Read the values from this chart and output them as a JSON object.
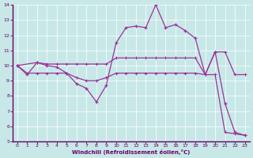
{
  "title": "",
  "xlabel": "Windchill (Refroidissement éolien,°C)",
  "xlim": [
    -0.5,
    23.5
  ],
  "ylim": [
    5,
    14
  ],
  "yticks": [
    5,
    6,
    7,
    8,
    9,
    10,
    11,
    12,
    13,
    14
  ],
  "xticks": [
    0,
    1,
    2,
    3,
    4,
    5,
    6,
    7,
    8,
    9,
    10,
    11,
    12,
    13,
    14,
    15,
    16,
    17,
    18,
    19,
    20,
    21,
    22,
    23
  ],
  "bg_color": "#c8e8e8",
  "line_color": "#993399",
  "axis_color": "#660066",
  "line1_x": [
    0,
    1,
    2,
    3,
    4,
    5,
    6,
    7,
    8,
    9,
    10,
    11,
    12,
    13,
    14,
    15,
    16,
    17,
    18,
    19,
    20,
    21,
    22,
    23
  ],
  "line1_y": [
    10.0,
    9.4,
    10.2,
    10.0,
    9.9,
    9.5,
    8.8,
    8.5,
    7.6,
    8.7,
    11.5,
    12.5,
    12.6,
    12.5,
    14.0,
    12.5,
    12.7,
    12.3,
    11.8,
    9.4,
    10.9,
    7.5,
    5.6,
    5.4
  ],
  "line2_x": [
    0,
    2,
    3,
    4,
    5,
    6,
    7,
    8,
    9,
    10,
    11,
    12,
    13,
    14,
    15,
    16,
    17,
    18,
    19,
    20,
    21,
    22,
    23
  ],
  "line2_y": [
    10.0,
    10.2,
    10.1,
    10.1,
    10.1,
    10.1,
    10.1,
    10.1,
    10.1,
    10.5,
    10.5,
    10.5,
    10.5,
    10.5,
    10.5,
    10.5,
    10.5,
    10.5,
    9.4,
    10.9,
    10.9,
    9.4,
    9.4
  ],
  "line3_x": [
    0,
    1,
    2,
    3,
    4,
    5,
    6,
    7,
    8,
    9,
    10,
    11,
    12,
    13,
    14,
    15,
    16,
    17,
    18,
    19,
    20,
    21,
    22,
    23
  ],
  "line3_y": [
    10.0,
    9.5,
    9.5,
    9.5,
    9.5,
    9.5,
    9.2,
    9.0,
    9.0,
    9.2,
    9.5,
    9.5,
    9.5,
    9.5,
    9.5,
    9.5,
    9.5,
    9.5,
    9.5,
    9.4,
    9.4,
    5.6,
    5.5,
    5.4
  ]
}
